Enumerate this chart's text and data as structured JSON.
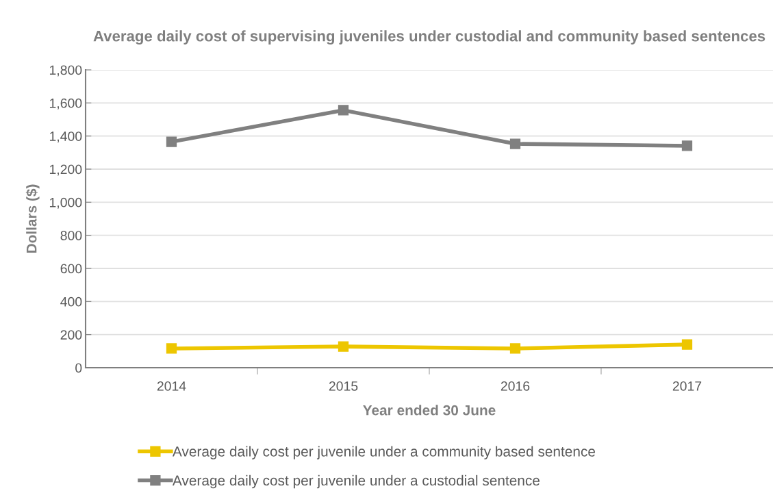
{
  "chart_data": {
    "type": "line",
    "title": "Average daily cost of supervising juveniles under custodial and community based sentences",
    "xlabel": "Year ended 30 June",
    "ylabel": "Dollars ($)",
    "categories": [
      "2014",
      "2015",
      "2016",
      "2017"
    ],
    "series": [
      {
        "name": "Average daily cost per juvenile under a community based sentence",
        "color": "#edc600",
        "values": [
          116,
          128,
          116,
          140
        ]
      },
      {
        "name": "Average daily cost per juvenile under a custodial sentence",
        "color": "#808080",
        "values": [
          1365,
          1556,
          1353,
          1341
        ]
      }
    ],
    "ylim": [
      0,
      1800
    ],
    "yticks": [
      {
        "value": 0,
        "label": "0"
      },
      {
        "value": 200,
        "label": "200"
      },
      {
        "value": 400,
        "label": "400"
      },
      {
        "value": 600,
        "label": "600"
      },
      {
        "value": 800,
        "label": "800"
      },
      {
        "value": 1000,
        "label": "1,000"
      },
      {
        "value": 1200,
        "label": "1,200"
      },
      {
        "value": 1400,
        "label": "1,400"
      },
      {
        "value": 1600,
        "label": "1,600"
      },
      {
        "value": 1800,
        "label": "1,800"
      }
    ],
    "grid": "y",
    "legend": "bottom",
    "marker": "square",
    "line_style": "solid"
  }
}
